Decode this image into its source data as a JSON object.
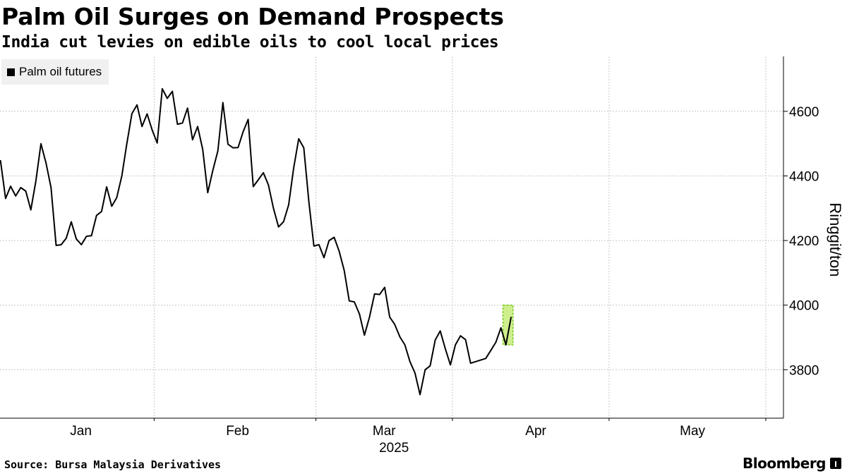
{
  "title": "Palm Oil Surges on Demand Prospects",
  "subtitle": "India cut levies on edible oils to cool local prices",
  "source": "Source: Bursa Malaysia Derivatives",
  "brand": "Bloomberg",
  "chart_data": {
    "type": "line",
    "ylabel": "Ringgit/ton",
    "ylim": [
      3650,
      4770
    ],
    "yticks": [
      3800,
      4000,
      4200,
      4400,
      4600
    ],
    "year_label": "2025",
    "months": [
      {
        "label": "Jan",
        "pos": 1.5
      },
      {
        "label": "Feb",
        "pos": 32.5
      },
      {
        "label": "Mar",
        "pos": 61.5
      },
      {
        "label": "Apr",
        "pos": 91.5
      },
      {
        "label": "May",
        "pos": 122.5
      }
    ],
    "month_dividers": [
      -16,
      16,
      48,
      75,
      106,
      137
    ],
    "x_range": [
      -14.5,
      140.5
    ],
    "grid": true,
    "legend_position": "top-left",
    "line_color": "#000000",
    "highlight_color": "#a6e22e",
    "series": [
      {
        "name": "Palm oil futures",
        "points": [
          [
            -14.4,
            4447
          ],
          [
            -13.4,
            4330
          ],
          [
            -12.4,
            4368
          ],
          [
            -11.4,
            4338
          ],
          [
            -10.4,
            4364
          ],
          [
            -9.4,
            4353
          ],
          [
            -8.4,
            4295
          ],
          [
            -7.4,
            4384
          ],
          [
            -6.4,
            4500
          ],
          [
            -5.4,
            4440
          ],
          [
            -4.4,
            4364
          ],
          [
            -3.4,
            4185
          ],
          [
            -2.4,
            4187
          ],
          [
            -1.4,
            4207
          ],
          [
            -0.4,
            4258
          ],
          [
            0.6,
            4205
          ],
          [
            1.6,
            4187
          ],
          [
            2.6,
            4213
          ],
          [
            3.6,
            4215
          ],
          [
            4.6,
            4278
          ],
          [
            5.6,
            4290
          ],
          [
            6.6,
            4366
          ],
          [
            7.6,
            4306
          ],
          [
            8.6,
            4333
          ],
          [
            9.6,
            4400
          ],
          [
            10.6,
            4500
          ],
          [
            11.6,
            4593
          ],
          [
            12.6,
            4620
          ],
          [
            13.6,
            4553
          ],
          [
            14.6,
            4592
          ],
          [
            15.6,
            4542
          ],
          [
            16.6,
            4502
          ],
          [
            17.6,
            4670
          ],
          [
            18.6,
            4640
          ],
          [
            19.6,
            4662
          ],
          [
            20.6,
            4560
          ],
          [
            21.6,
            4564
          ],
          [
            22.6,
            4610
          ],
          [
            23.6,
            4512
          ],
          [
            24.6,
            4553
          ],
          [
            25.6,
            4482
          ],
          [
            26.6,
            4348
          ],
          [
            27.6,
            4417
          ],
          [
            28.6,
            4478
          ],
          [
            29.6,
            4627
          ],
          [
            30.6,
            4498
          ],
          [
            31.6,
            4487
          ],
          [
            32.6,
            4488
          ],
          [
            33.6,
            4537
          ],
          [
            34.6,
            4575
          ],
          [
            35.6,
            4367
          ],
          [
            36.6,
            4388
          ],
          [
            37.6,
            4410
          ],
          [
            38.6,
            4372
          ],
          [
            39.6,
            4300
          ],
          [
            40.6,
            4242
          ],
          [
            41.6,
            4258
          ],
          [
            42.6,
            4310
          ],
          [
            43.6,
            4425
          ],
          [
            44.6,
            4515
          ],
          [
            45.6,
            4487
          ],
          [
            46.6,
            4320
          ],
          [
            47.6,
            4183
          ],
          [
            48.6,
            4187
          ],
          [
            49.6,
            4147
          ],
          [
            50.6,
            4200
          ],
          [
            51.6,
            4210
          ],
          [
            52.6,
            4167
          ],
          [
            53.6,
            4107
          ],
          [
            54.6,
            4013
          ],
          [
            55.6,
            4010
          ],
          [
            56.6,
            3973
          ],
          [
            57.6,
            3907
          ],
          [
            58.6,
            3963
          ],
          [
            59.6,
            4035
          ],
          [
            60.6,
            4033
          ],
          [
            61.6,
            4055
          ],
          [
            62.6,
            3963
          ],
          [
            63.6,
            3940
          ],
          [
            64.6,
            3902
          ],
          [
            65.6,
            3877
          ],
          [
            66.6,
            3825
          ],
          [
            67.6,
            3790
          ],
          [
            68.6,
            3723
          ],
          [
            69.6,
            3800
          ],
          [
            70.6,
            3812
          ],
          [
            71.6,
            3892
          ],
          [
            72.6,
            3920
          ],
          [
            73.6,
            3865
          ],
          [
            74.6,
            3815
          ],
          [
            75.6,
            3877
          ],
          [
            76.6,
            3905
          ],
          [
            77.6,
            3893
          ],
          [
            78.6,
            3820
          ],
          [
            79.6,
            3825
          ],
          [
            80.6,
            3830
          ],
          [
            81.6,
            3835
          ],
          [
            82.6,
            3860
          ],
          [
            83.6,
            3885
          ],
          [
            84.6,
            3930
          ],
          [
            85.6,
            3877
          ],
          [
            86.6,
            3962
          ]
        ]
      }
    ],
    "highlight": {
      "x_from": 85.0,
      "x_to": 87.0,
      "y_from": 3877,
      "y_to": 4000
    }
  }
}
